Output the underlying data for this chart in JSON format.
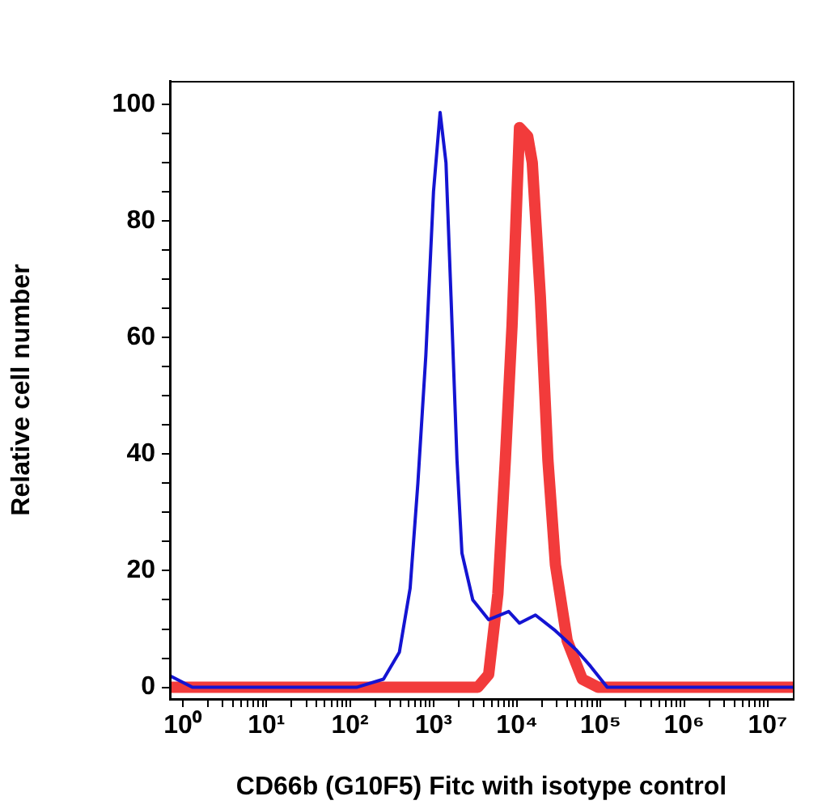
{
  "chart_data": {
    "type": "line",
    "xlabel": "CD66b (G10F5) Fitc with isotype control",
    "ylabel": "Relative cell number",
    "log": "x",
    "marker": "none",
    "xlim": [
      0.7,
      20000000
    ],
    "ylim": [
      -2,
      104
    ],
    "xticks": [
      {
        "value": 1,
        "label": "10⁰"
      },
      {
        "value": 2,
        "label": null
      },
      {
        "value": 3,
        "label": null
      },
      {
        "value": 4,
        "label": null
      },
      {
        "value": 5,
        "label": null
      },
      {
        "value": 6,
        "label": null
      },
      {
        "value": 7,
        "label": null
      },
      {
        "value": 8,
        "label": null
      },
      {
        "value": 9,
        "label": null
      },
      {
        "value": 10,
        "label": "10¹"
      },
      {
        "value": 20,
        "label": null
      },
      {
        "value": 30,
        "label": null
      },
      {
        "value": 40,
        "label": null
      },
      {
        "value": 50,
        "label": null
      },
      {
        "value": 60,
        "label": null
      },
      {
        "value": 70,
        "label": null
      },
      {
        "value": 80,
        "label": null
      },
      {
        "value": 90,
        "label": null
      },
      {
        "value": 100,
        "label": "10²"
      },
      {
        "value": 200,
        "label": null
      },
      {
        "value": 300,
        "label": null
      },
      {
        "value": 400,
        "label": null
      },
      {
        "value": 500,
        "label": null
      },
      {
        "value": 600,
        "label": null
      },
      {
        "value": 700,
        "label": null
      },
      {
        "value": 800,
        "label": null
      },
      {
        "value": 900,
        "label": null
      },
      {
        "value": 1000,
        "label": "10³"
      },
      {
        "value": 2000,
        "label": null
      },
      {
        "value": 3000,
        "label": null
      },
      {
        "value": 4000,
        "label": null
      },
      {
        "value": 5000,
        "label": null
      },
      {
        "value": 6000,
        "label": null
      },
      {
        "value": 7000,
        "label": null
      },
      {
        "value": 8000,
        "label": null
      },
      {
        "value": 9000,
        "label": null
      },
      {
        "value": 10000,
        "label": "10⁴"
      },
      {
        "value": 20000,
        "label": null
      },
      {
        "value": 30000,
        "label": null
      },
      {
        "value": 40000,
        "label": null
      },
      {
        "value": 50000,
        "label": null
      },
      {
        "value": 60000,
        "label": null
      },
      {
        "value": 70000,
        "label": null
      },
      {
        "value": 80000,
        "label": null
      },
      {
        "value": 90000,
        "label": null
      },
      {
        "value": 100000,
        "label": "10⁵"
      },
      {
        "value": 200000,
        "label": null
      },
      {
        "value": 300000,
        "label": null
      },
      {
        "value": 400000,
        "label": null
      },
      {
        "value": 500000,
        "label": null
      },
      {
        "value": 600000,
        "label": null
      },
      {
        "value": 700000,
        "label": null
      },
      {
        "value": 800000,
        "label": null
      },
      {
        "value": 900000,
        "label": null
      },
      {
        "value": 1000000,
        "label": "10⁶"
      },
      {
        "value": 2000000,
        "label": null
      },
      {
        "value": 3000000,
        "label": null
      },
      {
        "value": 4000000,
        "label": null
      },
      {
        "value": 5000000,
        "label": null
      },
      {
        "value": 6000000,
        "label": null
      },
      {
        "value": 7000000,
        "label": null
      },
      {
        "value": 8000000,
        "label": null
      },
      {
        "value": 9000000,
        "label": null
      },
      {
        "value": 10000000,
        "label": "10⁷"
      }
    ],
    "yticks": [
      0,
      {
        "value": 5,
        "label": null
      },
      {
        "value": 10,
        "label": null
      },
      {
        "value": 15,
        "label": null
      },
      20,
      {
        "value": 25,
        "label": null
      },
      {
        "value": 30,
        "label": null
      },
      {
        "value": 35,
        "label": null
      },
      40,
      {
        "value": 45,
        "label": null
      },
      {
        "value": 50,
        "label": null
      },
      {
        "value": 55,
        "label": null
      },
      60,
      {
        "value": 65,
        "label": null
      },
      {
        "value": 70,
        "label": null
      },
      {
        "value": 75,
        "label": null
      },
      80,
      {
        "value": 85,
        "label": null
      },
      {
        "value": 90,
        "label": null
      },
      {
        "value": 95,
        "label": null
      },
      100
    ],
    "series": [
      {
        "color": "#1414d2",
        "x": [
          0.7,
          1.3,
          120,
          252,
          390,
          525,
          650,
          810,
          1000,
          1200,
          1410,
          1620,
          1910,
          2190,
          2950,
          4570,
          7940,
          10700,
          16600,
          28800,
          51300,
          75900,
          120000,
          20000000
        ],
        "values": [
          2,
          0,
          0,
          1.4,
          6,
          17,
          35,
          57,
          85,
          98.6,
          90,
          67,
          39,
          23,
          15,
          11.6,
          13,
          11,
          12.4,
          9.7,
          6.4,
          3.6,
          0,
          0
        ]
      },
      {
        "color": "#f23b3b",
        "x": [
          0.7,
          3390,
          4570,
          5890,
          7240,
          8710,
          10000,
          10700,
          13400,
          15200,
          19000,
          23400,
          28800,
          39800,
          60300,
          93300,
          20000000
        ],
        "values": [
          0,
          0,
          2.2,
          16,
          39,
          62,
          85,
          96,
          94.5,
          90,
          67,
          39,
          21,
          8,
          1.4,
          0,
          0
        ]
      }
    ]
  }
}
